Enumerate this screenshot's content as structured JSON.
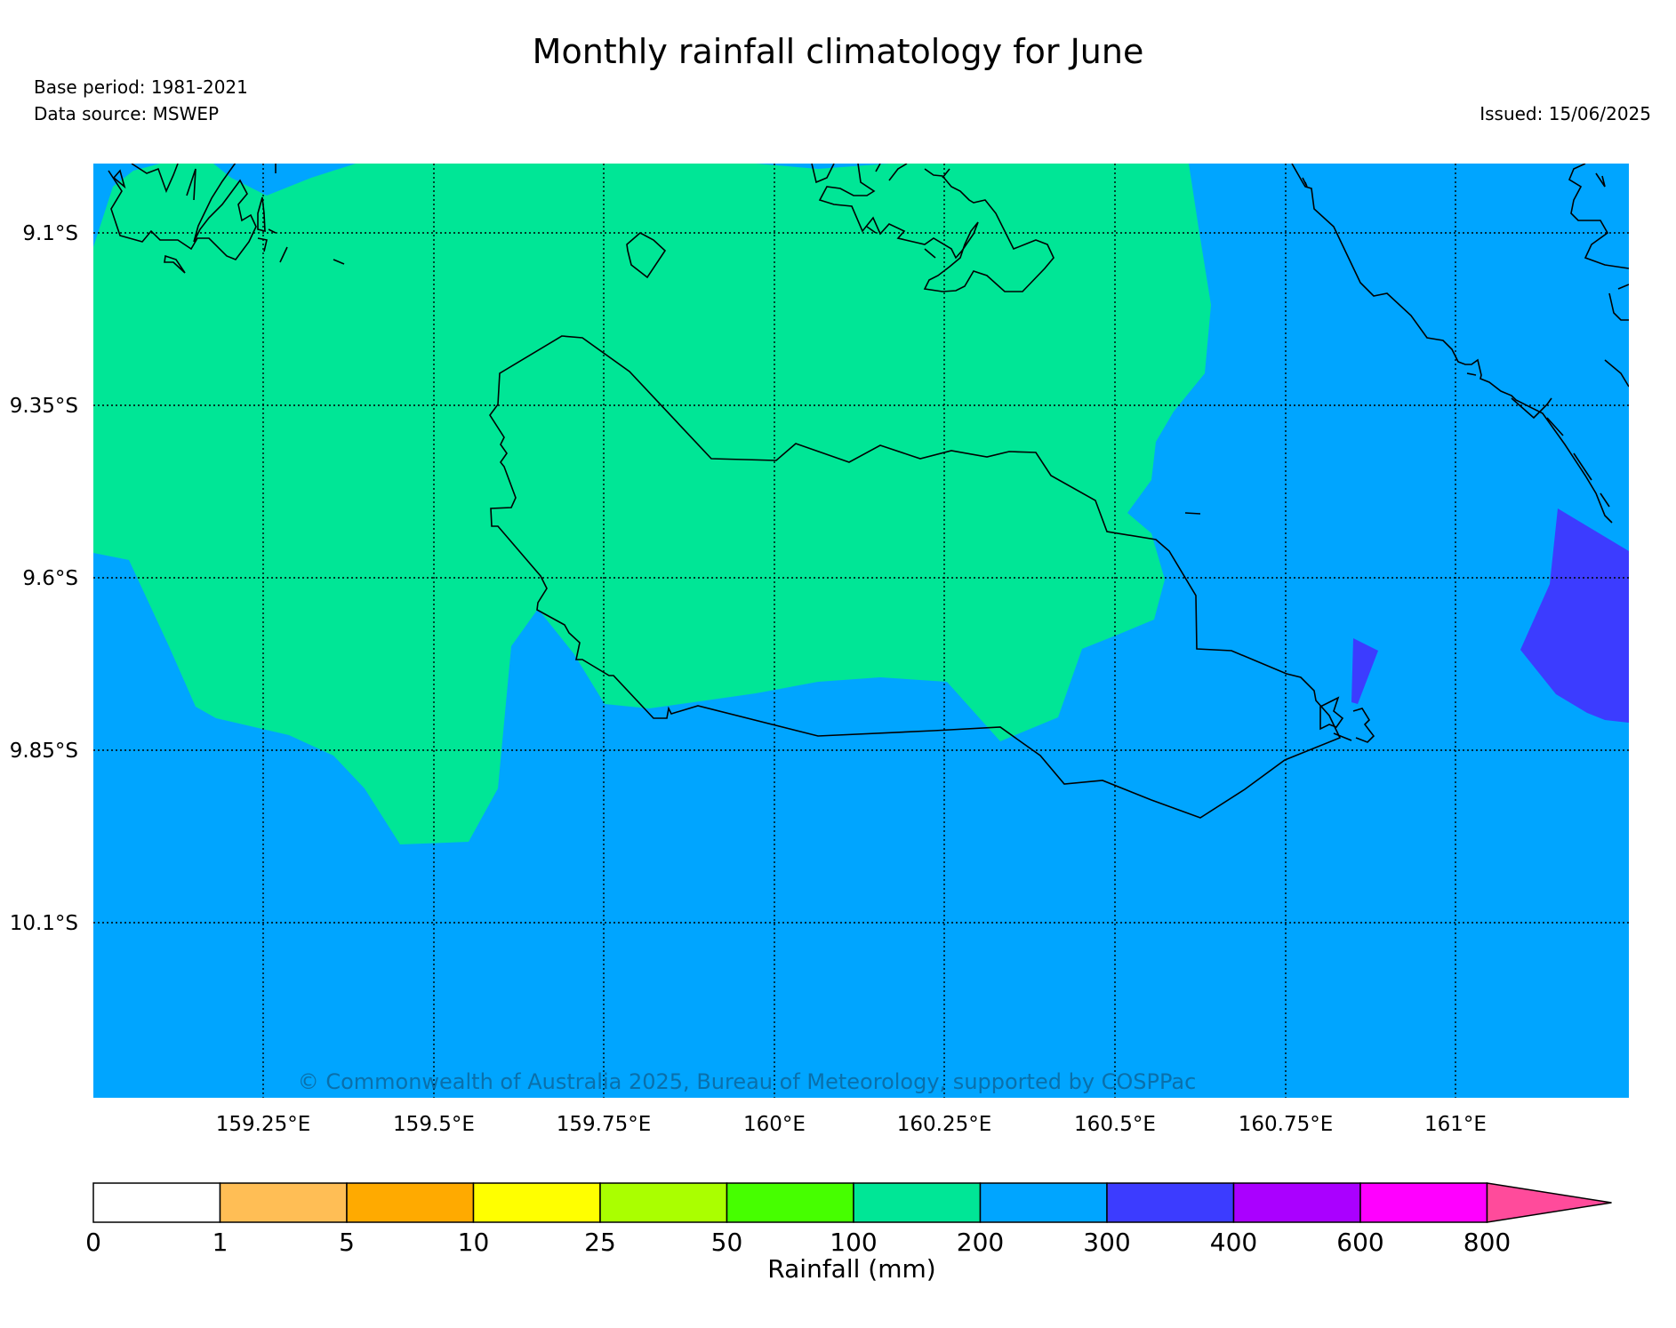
{
  "title": "Monthly rainfall climatology for June",
  "base_period": "Base period: 1981-2021",
  "data_source": "Data source: MSWEP",
  "issued": "Issued: 15/06/2025",
  "copyright": "© Commonwealth of Australia 2025, Bureau of Meteorology, supported by COSPPac",
  "map": {
    "lat_labels": [
      "9.1°S",
      "9.35°S",
      "9.6°S",
      "9.85°S",
      "10.1°S"
    ],
    "lon_labels": [
      "159.25°E",
      "159.5°E",
      "159.75°E",
      "160°E",
      "160.25°E",
      "160.5°E",
      "160.75°E",
      "161°E"
    ],
    "colors": {
      "band_100_200": "#00e696",
      "band_200_300": "#00a5ff",
      "band_300_400": "#3c3cff"
    }
  },
  "colorbar": {
    "label": "Rainfall (mm)",
    "ticks": [
      "0",
      "1",
      "5",
      "10",
      "25",
      "50",
      "100",
      "200",
      "300",
      "400",
      "600",
      "800"
    ],
    "colors": [
      "#ffffff",
      "#ffbe55",
      "#ffaa00",
      "#ffff00",
      "#aaff00",
      "#46ff00",
      "#00e696",
      "#00a5ff",
      "#3c3cff",
      "#aa00ff",
      "#ff00ff",
      "#ff4b9b"
    ]
  }
}
